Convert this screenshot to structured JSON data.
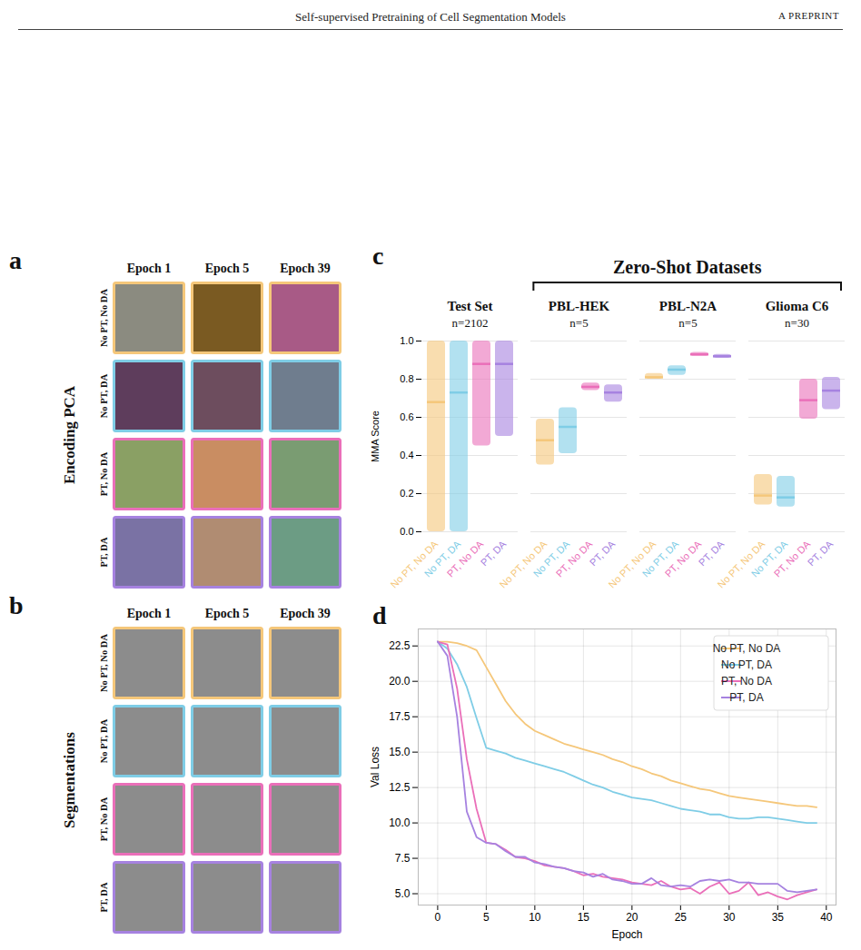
{
  "header": {
    "title": "Self-supervised Pretraining of Cell Segmentation Models",
    "right": "A PREPRINT"
  },
  "panels": [
    {
      "letter": "a",
      "row_title": "Encoding PCA",
      "columns": [
        "Epoch 1",
        "Epoch 5",
        "Epoch 39"
      ],
      "rows": [
        {
          "label": "No PT, No DA",
          "color": "#f5c77a"
        },
        {
          "label": "No PT, DA",
          "color": "#7fcde6"
        },
        {
          "label": "PT, No DA",
          "color": "#ea6fb9"
        },
        {
          "label": "PT, DA",
          "color": "#a682e0"
        }
      ]
    },
    {
      "letter": "b",
      "row_title": "Segmentations",
      "columns": [
        "Epoch 1",
        "Epoch 5",
        "Epoch 39"
      ],
      "rows": [
        {
          "label": "No PT, No DA",
          "color": "#f5c77a"
        },
        {
          "label": "No PT, DA",
          "color": "#7fcde6"
        },
        {
          "label": "PT, No DA",
          "color": "#ea6fb9"
        },
        {
          "label": "PT, DA",
          "color": "#a682e0"
        }
      ]
    }
  ],
  "chart_data": [
    {
      "letter": "c",
      "type": "violin",
      "annotations": [
        {
          "text": "Zero-Shot Datasets",
          "groups": [
            "PBL-HEK",
            "PBL-N2A",
            "Glioma C6"
          ]
        }
      ],
      "groups": [
        {
          "name": "Test Set",
          "label": "n=2102"
        },
        {
          "name": "PBL-HEK",
          "label": "n=5"
        },
        {
          "name": "PBL-N2A",
          "label": "n=5"
        },
        {
          "name": "Glioma C6",
          "label": "n=30"
        }
      ],
      "ylabel": "MMA Score",
      "ylim": [
        0,
        1
      ],
      "yticks": [
        {
          "value": 0,
          "label": "0.0"
        },
        0.2,
        0.4,
        0.6,
        0.8,
        {
          "value": 1,
          "label": "1.0"
        }
      ],
      "grid": true,
      "series": [
        {
          "name": "No PT, No DA",
          "color": "#f5c77a",
          "median": [
            0.68,
            0.48,
            0.81,
            0.19
          ],
          "min": [
            0.0,
            0.35,
            0.8,
            0.14
          ],
          "max": [
            1.0,
            0.59,
            0.83,
            0.3
          ]
        },
        {
          "name": "No PT, DA",
          "color": "#7fcde6",
          "median": [
            0.73,
            0.55,
            0.85,
            0.18
          ],
          "min": [
            0.0,
            0.41,
            0.82,
            0.13
          ],
          "max": [
            1.0,
            0.65,
            0.87,
            0.29
          ]
        },
        {
          "name": "PT, No DA",
          "color": "#ea6fb9",
          "median": [
            0.88,
            0.76,
            0.93,
            0.69
          ],
          "min": [
            0.45,
            0.74,
            0.92,
            0.59
          ],
          "max": [
            1.0,
            0.78,
            0.94,
            0.8
          ]
        },
        {
          "name": "PT, DA",
          "color": "#a682e0",
          "median": [
            0.88,
            0.73,
            0.92,
            0.74
          ],
          "min": [
            0.5,
            0.68,
            0.91,
            0.64
          ],
          "max": [
            1.0,
            0.77,
            0.93,
            0.81
          ]
        }
      ]
    },
    {
      "letter": "d",
      "type": "line",
      "xlabel": "Epoch",
      "ylabel": "Val Loss",
      "x": [
        0,
        1,
        2,
        3,
        4,
        5,
        6,
        7,
        8,
        9,
        10,
        11,
        12,
        13,
        14,
        15,
        16,
        17,
        18,
        19,
        20,
        21,
        22,
        23,
        24,
        25,
        26,
        27,
        28,
        29,
        30,
        31,
        32,
        33,
        34,
        35,
        36,
        37,
        38,
        39
      ],
      "xlim": [
        -2,
        41
      ],
      "xticks": [
        0,
        5,
        10,
        15,
        20,
        25,
        30,
        35,
        40
      ],
      "ylim": [
        4.2,
        23.7
      ],
      "yticks": [
        {
          "value": 5,
          "label": "5.0"
        },
        7.5,
        {
          "value": 10,
          "label": "10.0"
        },
        12.5,
        {
          "value": 15,
          "label": "15.0"
        },
        17.5,
        {
          "value": 20,
          "label": "20.0"
        },
        22.5
      ],
      "grid": true,
      "legend": "top-right",
      "series": [
        {
          "name": "No PT, No DA",
          "color": "#f5c77a",
          "values": [
            22.8,
            22.8,
            22.7,
            22.5,
            22.2,
            21.0,
            19.8,
            18.6,
            17.7,
            17.0,
            16.5,
            16.2,
            15.9,
            15.6,
            15.4,
            15.2,
            15.0,
            14.8,
            14.5,
            14.3,
            14.0,
            13.8,
            13.5,
            13.3,
            13.0,
            12.8,
            12.6,
            12.4,
            12.3,
            12.1,
            11.9,
            11.8,
            11.7,
            11.6,
            11.5,
            11.4,
            11.3,
            11.2,
            11.2,
            11.1
          ]
        },
        {
          "name": "No PT, DA",
          "color": "#7fcde6",
          "values": [
            22.8,
            22.3,
            21.2,
            19.6,
            17.4,
            15.3,
            15.1,
            14.9,
            14.6,
            14.4,
            14.2,
            14.0,
            13.8,
            13.6,
            13.3,
            13.0,
            12.7,
            12.5,
            12.2,
            12.0,
            11.8,
            11.7,
            11.6,
            11.4,
            11.2,
            11.0,
            10.9,
            10.8,
            10.6,
            10.6,
            10.4,
            10.3,
            10.3,
            10.4,
            10.4,
            10.3,
            10.2,
            10.1,
            10.0,
            10.0
          ]
        },
        {
          "name": "PT, No DA",
          "color": "#ea6fb9",
          "values": [
            22.8,
            22.6,
            19.5,
            14.5,
            11.0,
            8.6,
            8.5,
            8.1,
            7.6,
            7.5,
            7.3,
            7.0,
            6.9,
            6.8,
            6.6,
            6.3,
            6.4,
            6.2,
            6.1,
            6.0,
            5.8,
            5.7,
            5.6,
            5.9,
            5.5,
            5.3,
            5.4,
            5.0,
            5.5,
            5.8,
            5.0,
            5.2,
            5.8,
            4.9,
            5.1,
            4.8,
            4.6,
            4.9,
            5.1,
            5.3
          ]
        },
        {
          "name": "PT, DA",
          "color": "#a682e0",
          "values": [
            22.8,
            21.8,
            17.5,
            10.8,
            9.0,
            8.6,
            8.5,
            8.0,
            7.6,
            7.6,
            7.2,
            7.1,
            6.9,
            6.8,
            6.6,
            6.5,
            6.2,
            6.4,
            6.0,
            5.9,
            5.7,
            5.7,
            6.1,
            5.6,
            5.5,
            5.6,
            5.5,
            5.9,
            6.0,
            5.9,
            6.0,
            5.8,
            5.8,
            5.7,
            5.7,
            5.7,
            5.2,
            5.1,
            5.2,
            5.3
          ]
        }
      ]
    }
  ]
}
